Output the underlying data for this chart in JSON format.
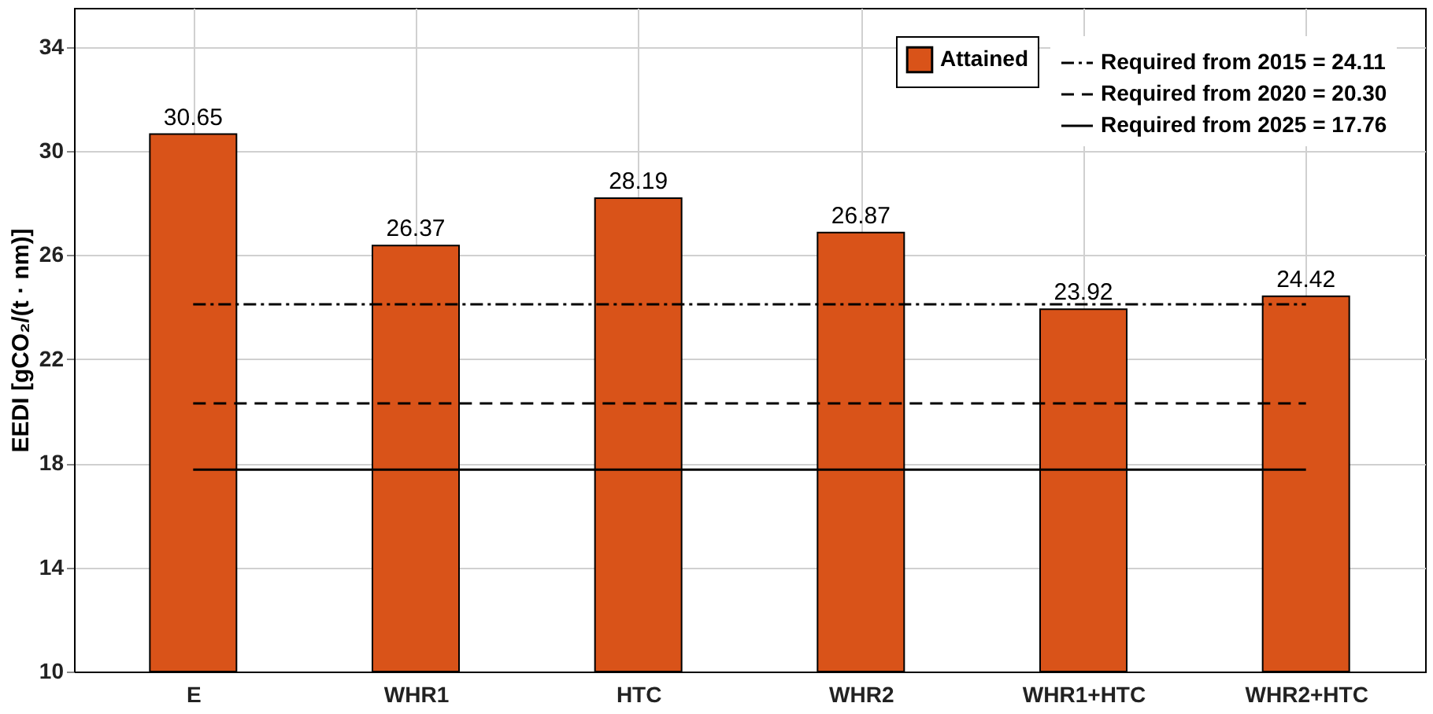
{
  "chart_data": {
    "type": "bar",
    "ylabel": "EEDI [gCO₂/(t · nm)]",
    "categories": [
      "E",
      "WHR1",
      "HTC",
      "WHR2",
      "WHR1+HTC",
      "WHR2+HTC"
    ],
    "series": [
      {
        "name": "Attained",
        "color": "#d95319",
        "values": [
          30.65,
          26.37,
          28.19,
          26.87,
          23.92,
          24.42
        ]
      }
    ],
    "ylim": [
      10,
      35.5
    ],
    "yticks": [
      10,
      14,
      18,
      22,
      26,
      30,
      34
    ],
    "data_labels": true,
    "grid": true,
    "legend": "top right",
    "ref_lines": [
      {
        "axis": "y",
        "value": 24.11,
        "label": "Required from 2015 = 24.11",
        "color": "#000000",
        "line_style": "dashdot"
      },
      {
        "axis": "y",
        "value": 20.3,
        "label": "Required from 2020 = 20.30",
        "color": "#000000",
        "line_style": "dashed"
      },
      {
        "axis": "y",
        "value": 17.76,
        "label": "Required from 2025 = 17.76",
        "color": "#000000",
        "line_style": "solid"
      }
    ]
  }
}
